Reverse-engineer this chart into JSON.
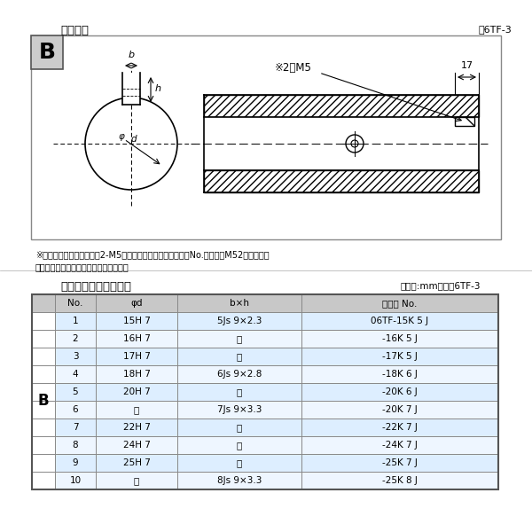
{
  "title_top": "軸穴形状",
  "fig_label_top": "図6TF-3",
  "note_line1": "※セットボルト用タップ（2-M5）が必要な場合は右記コードNo.の末尾にM52を付ける。",
  "note_line2": "（セットボルトは付属されています。）",
  "table_title": "軸穴形状コード一覧表",
  "table_unit": "（単位:mm）　表6TF-3",
  "table_header": [
    "No.",
    "φd",
    "b×h",
    "コード No."
  ],
  "table_data": [
    [
      "1",
      "15H 7",
      "5Js 9×2.3",
      "06TF-15K 5 J"
    ],
    [
      "2",
      "16H 7",
      "〃",
      "-16K 5 J"
    ],
    [
      "3",
      "17H 7",
      "〃",
      "-17K 5 J"
    ],
    [
      "4",
      "18H 7",
      "6Js 9×2.8",
      "-18K 6 J"
    ],
    [
      "5",
      "20H 7",
      "〃",
      "-20K 6 J"
    ],
    [
      "6",
      "〃",
      "7Js 9×3.3",
      "-20K 7 J"
    ],
    [
      "7",
      "22H 7",
      "〃",
      "-22K 7 J"
    ],
    [
      "8",
      "24H 7",
      "〃",
      "-24K 7 J"
    ],
    [
      "9",
      "25H 7",
      "〃",
      "-25K 7 J"
    ],
    [
      "10",
      "〃",
      "8Js 9×3.3",
      "-25K 8 J"
    ]
  ],
  "row_colors": [
    "#ddeeff",
    "#eef5ff",
    "#ddeeff",
    "#eef5ff",
    "#ddeeff",
    "#eef5ff",
    "#ddeeff",
    "#eef5ff",
    "#ddeeff",
    "#eef5ff"
  ],
  "header_bg": "#cccccc",
  "b_box_bg": "#cccccc"
}
